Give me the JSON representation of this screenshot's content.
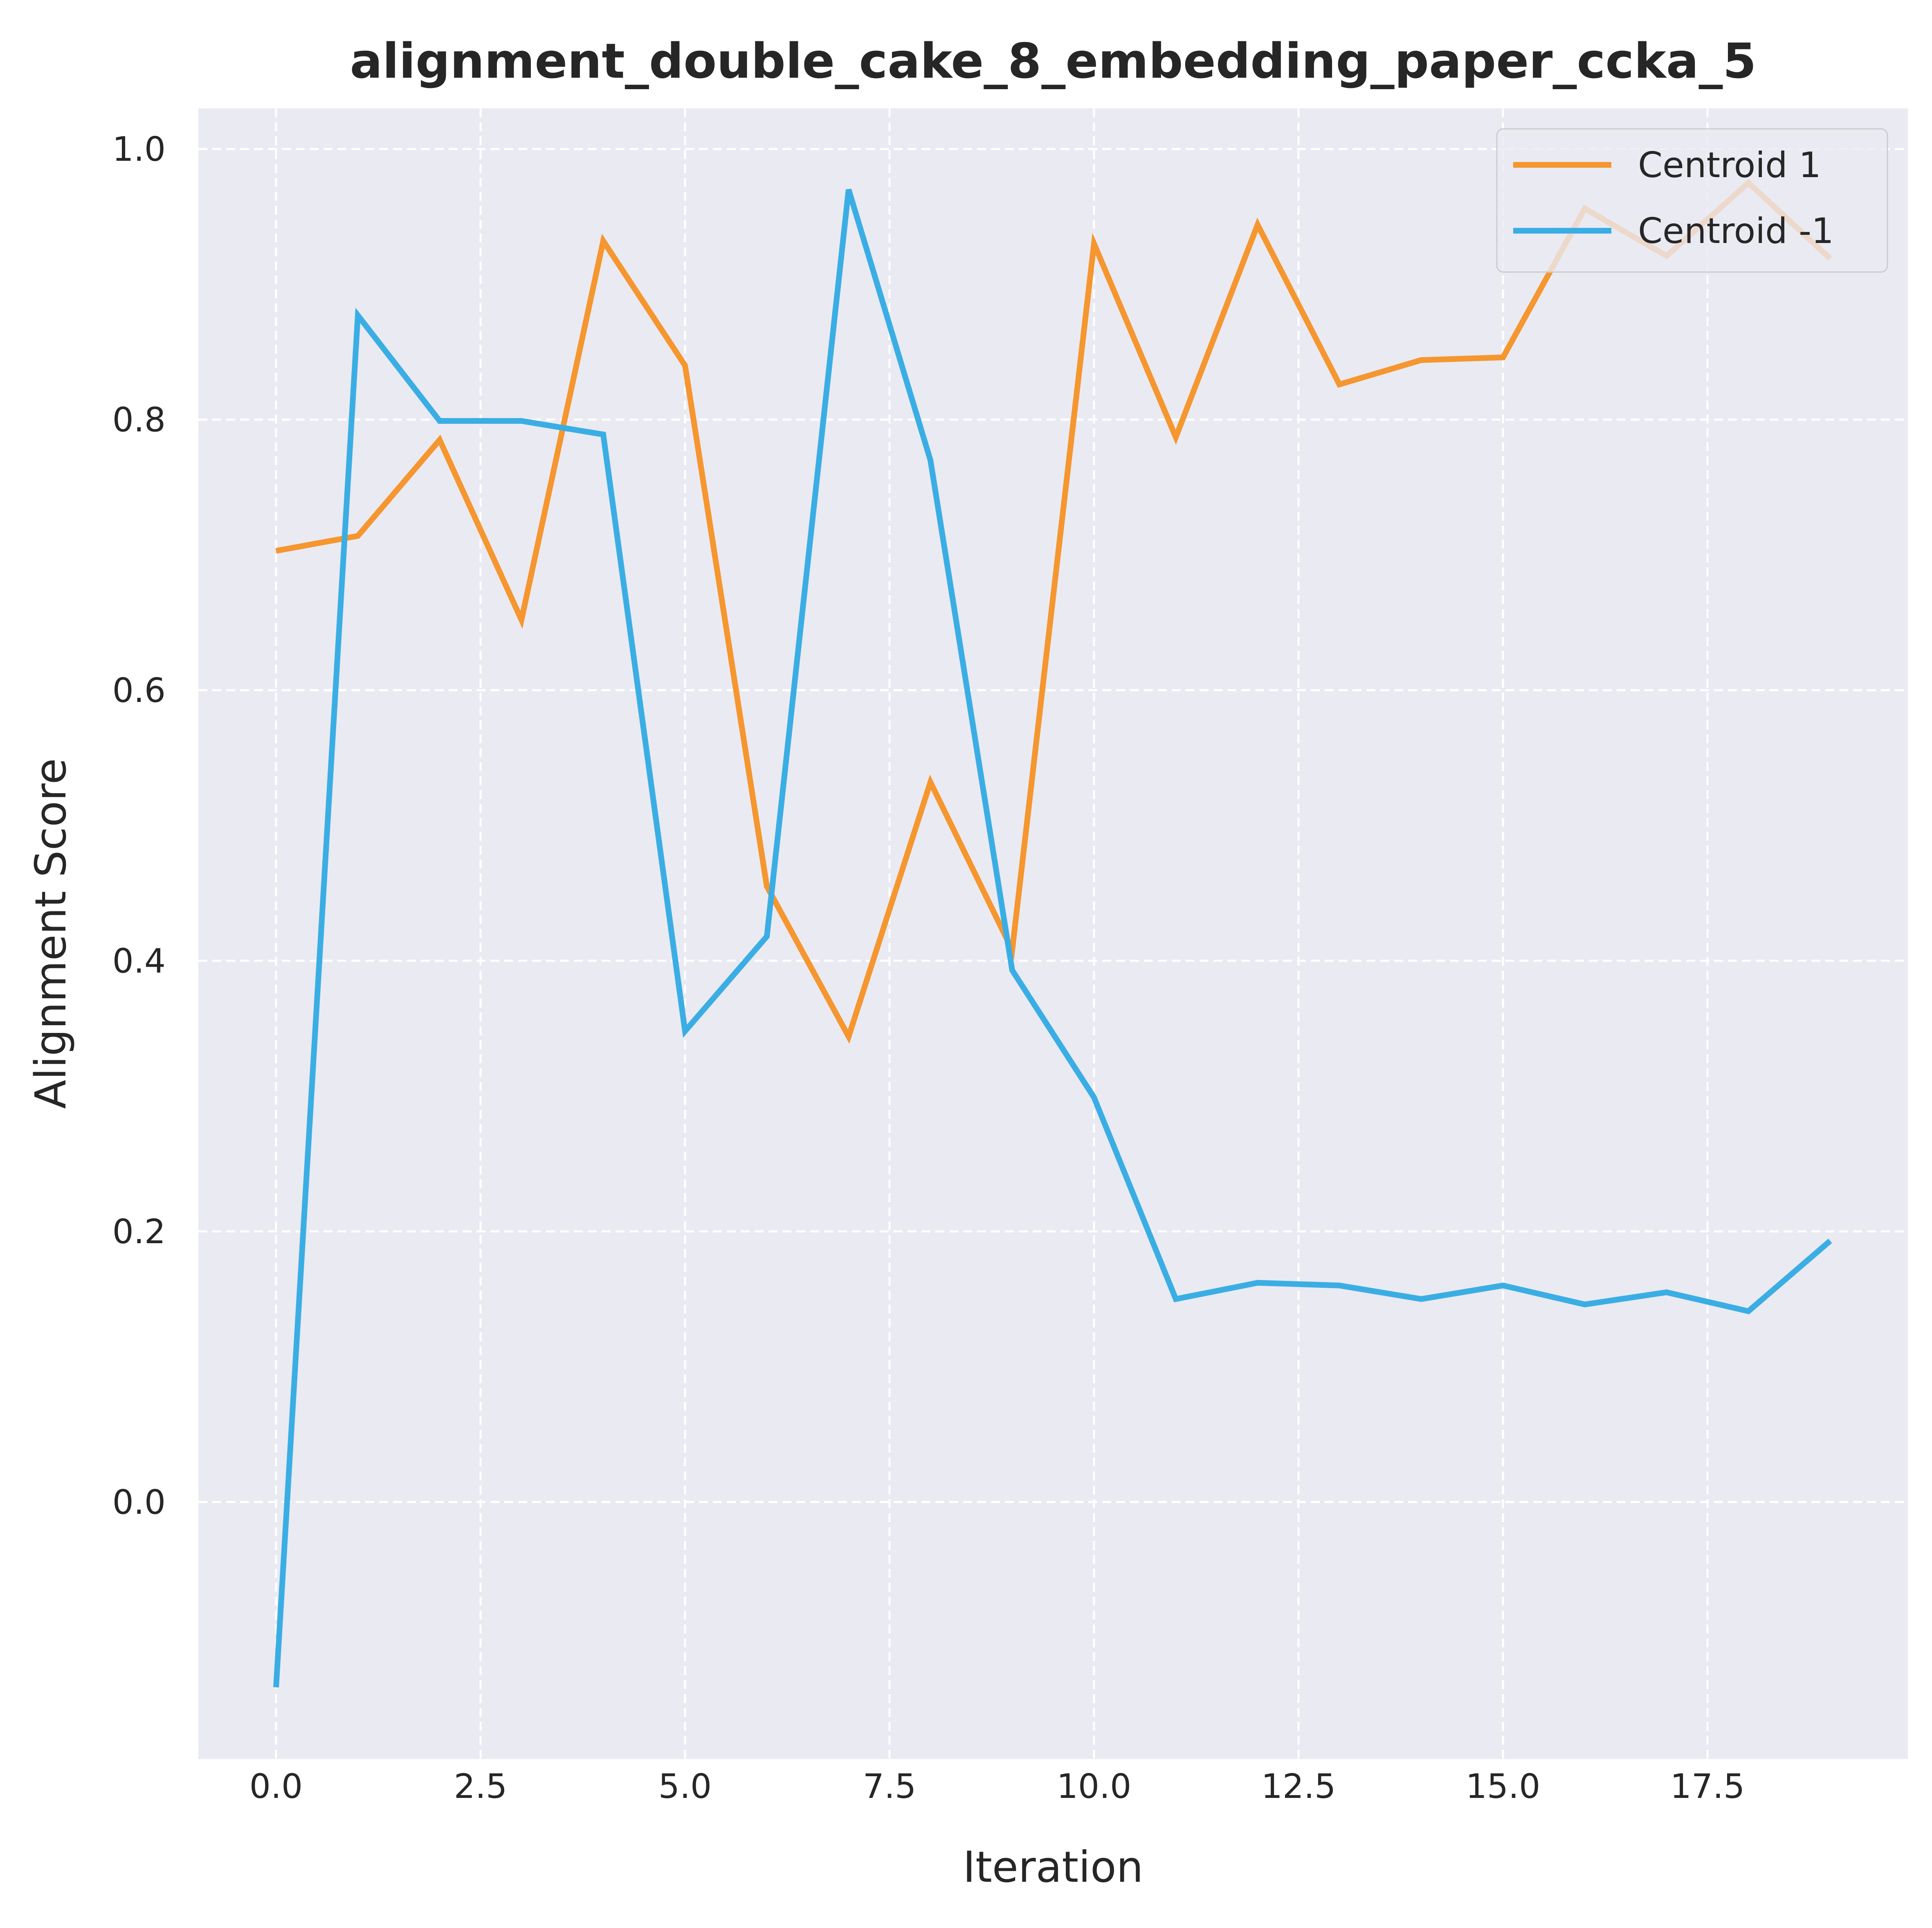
{
  "chart_data": {
    "type": "line",
    "title": "alignment_double_cake_8_embedding_paper_ccka_5",
    "xlabel": "Iteration",
    "ylabel": "Alignment Score",
    "xlim": [
      -0.95,
      19.95
    ],
    "ylim": [
      -0.19,
      1.03
    ],
    "xticks": [
      0.0,
      2.5,
      5.0,
      7.5,
      10.0,
      12.5,
      15.0,
      17.5
    ],
    "xtick_labels": [
      "0.0",
      "2.5",
      "5.0",
      "7.5",
      "10.0",
      "12.5",
      "15.0",
      "17.5"
    ],
    "yticks": [
      0.0,
      0.2,
      0.4,
      0.6,
      0.8,
      1.0
    ],
    "ytick_labels": [
      "0.0",
      "0.2",
      "0.4",
      "0.6",
      "0.8",
      "1.0"
    ],
    "grid": true,
    "grid_style": "dashed",
    "background": "#eaeaf2",
    "legend_position": "top-right",
    "x": [
      0,
      1,
      2,
      3,
      4,
      5,
      6,
      7,
      8,
      9,
      10,
      11,
      12,
      13,
      14,
      15,
      16,
      17,
      18,
      19
    ],
    "series": [
      {
        "name": "Centroid 1",
        "color": "#f5962f",
        "values": [
          0.703,
          0.714,
          0.785,
          0.652,
          0.932,
          0.84,
          0.455,
          0.344,
          0.532,
          0.408,
          0.93,
          0.787,
          0.944,
          0.826,
          0.844,
          0.846,
          0.956,
          0.921,
          0.975,
          0.919
        ]
      },
      {
        "name": "Centroid -1",
        "color": "#3aaee4",
        "values": [
          -0.137,
          0.877,
          0.799,
          0.799,
          0.789,
          0.348,
          0.418,
          0.97,
          0.77,
          0.393,
          0.299,
          0.15,
          0.162,
          0.16,
          0.15,
          0.16,
          0.146,
          0.155,
          0.141,
          0.193
        ]
      }
    ]
  }
}
